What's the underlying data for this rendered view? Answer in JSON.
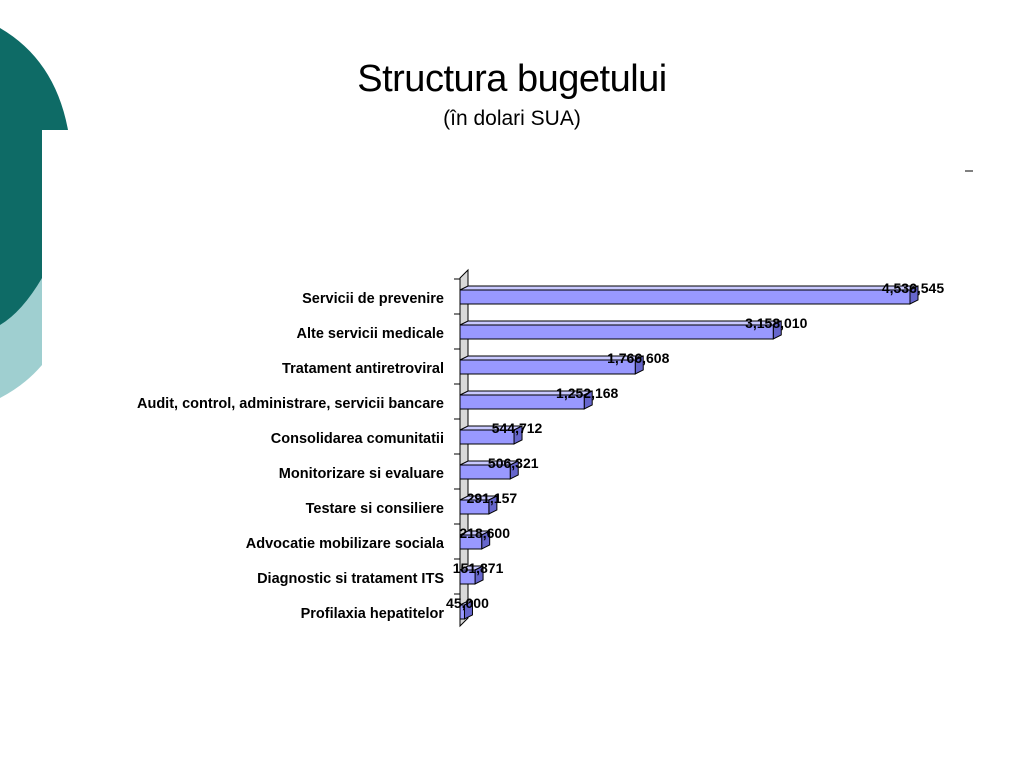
{
  "slide": {
    "title": "Structura bugetului",
    "subtitle": "(în dolari SUA)"
  },
  "colors": {
    "teal_dark": "#0e6b66",
    "teal_light": "#9fcfd0",
    "bar_front": "#9999ff",
    "bar_top": "#c9c9ff",
    "bar_side": "#6666cc",
    "outline": "#000000"
  },
  "chart_data": {
    "type": "bar",
    "orientation": "horizontal",
    "style": "3d",
    "categories": [
      "Servicii de prevenire",
      "Alte servicii medicale",
      "Tratament antiretroviral",
      "Audit, control, administrare, servicii bancare",
      "Consolidarea comunitatii",
      "Monitorizare si evaluare",
      "Testare si consiliere",
      "Advocatie mobilizare sociala",
      "Diagnostic si tratament ITS",
      "Profilaxia hepatitelor"
    ],
    "values": [
      4536545,
      3158010,
      1766608,
      1252168,
      544712,
      506321,
      291157,
      218600,
      151871,
      45000
    ],
    "value_labels": [
      "4,536,545",
      "3,158,010",
      "1,766,608",
      "1,252,168",
      "544,712",
      "506,321",
      "291,157",
      "218,600",
      "151,871",
      "45,000"
    ],
    "title": "",
    "xlabel": "",
    "ylabel": "",
    "xlim": [
      0,
      5000000
    ],
    "grid": false,
    "legend": "none"
  }
}
